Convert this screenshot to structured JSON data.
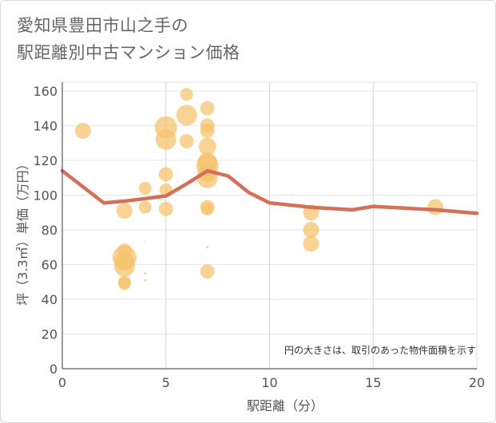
{
  "chart_data": {
    "type": "scatter",
    "title_lines": [
      "愛知県豊田市山之手の",
      "駅距離別中古マンション価格"
    ],
    "xlabel": "駅距離（分）",
    "ylabel": "坪（3.3㎡）単価（万円）",
    "xlim": [
      0,
      20
    ],
    "ylim": [
      0,
      165
    ],
    "x_ticks": [
      0,
      5,
      10,
      15,
      20
    ],
    "y_ticks": [
      0,
      20,
      40,
      60,
      80,
      100,
      120,
      140,
      160
    ],
    "grid": true,
    "note": "円の大きさは、取引のあった物件面積を示す",
    "bubble_color": "#f5c26b",
    "line_color": "#d4705a",
    "points": [
      {
        "x": 1,
        "y": 137,
        "size": 10
      },
      {
        "x": 3,
        "y": 91,
        "size": 10
      },
      {
        "x": 3,
        "y": 68,
        "size": 9
      },
      {
        "x": 3,
        "y": 64,
        "size": 15
      },
      {
        "x": 3,
        "y": 62,
        "size": 12
      },
      {
        "x": 3,
        "y": 59,
        "size": 13
      },
      {
        "x": 3,
        "y": 50,
        "size": 8
      },
      {
        "x": 3,
        "y": 49,
        "size": 8
      },
      {
        "x": 4,
        "y": 104,
        "size": 8
      },
      {
        "x": 4,
        "y": 93,
        "size": 8
      },
      {
        "x": 4,
        "y": 55,
        "size": 1.5
      },
      {
        "x": 4,
        "y": 51,
        "size": 1.5
      },
      {
        "x": 4,
        "y": 73,
        "size": 0.8
      },
      {
        "x": 5,
        "y": 139,
        "size": 14
      },
      {
        "x": 5,
        "y": 132,
        "size": 13
      },
      {
        "x": 5,
        "y": 112,
        "size": 9
      },
      {
        "x": 5,
        "y": 103,
        "size": 8
      },
      {
        "x": 5,
        "y": 92,
        "size": 9
      },
      {
        "x": 6,
        "y": 158,
        "size": 8
      },
      {
        "x": 6,
        "y": 146,
        "size": 13
      },
      {
        "x": 6,
        "y": 131,
        "size": 9
      },
      {
        "x": 7,
        "y": 150,
        "size": 9
      },
      {
        "x": 7,
        "y": 140,
        "size": 9
      },
      {
        "x": 7,
        "y": 137,
        "size": 9
      },
      {
        "x": 7,
        "y": 128,
        "size": 11
      },
      {
        "x": 7,
        "y": 119,
        "size": 12
      },
      {
        "x": 7,
        "y": 117,
        "size": 14
      },
      {
        "x": 7,
        "y": 113,
        "size": 12
      },
      {
        "x": 7,
        "y": 110,
        "size": 13
      },
      {
        "x": 7,
        "y": 93,
        "size": 9
      },
      {
        "x": 7,
        "y": 92,
        "size": 8
      },
      {
        "x": 7,
        "y": 70,
        "size": 1.5
      },
      {
        "x": 7,
        "y": 56,
        "size": 9
      },
      {
        "x": 12,
        "y": 90,
        "size": 10
      },
      {
        "x": 12,
        "y": 80,
        "size": 10
      },
      {
        "x": 12,
        "y": 72,
        "size": 10
      },
      {
        "x": 18,
        "y": 93,
        "size": 10
      }
    ],
    "series": [
      {
        "values": [
          {
            "x": 0,
            "y": 114
          },
          {
            "x": 2,
            "y": 95.5
          },
          {
            "x": 3,
            "y": 96.5
          },
          {
            "x": 4,
            "y": 98
          },
          {
            "x": 5,
            "y": 99.5
          },
          {
            "x": 6,
            "y": 106.5
          },
          {
            "x": 7,
            "y": 114
          },
          {
            "x": 8,
            "y": 111
          },
          {
            "x": 9,
            "y": 101.5
          },
          {
            "x": 10,
            "y": 95.5
          },
          {
            "x": 12,
            "y": 93
          },
          {
            "x": 14,
            "y": 91.5
          },
          {
            "x": 15,
            "y": 93.5
          },
          {
            "x": 18,
            "y": 91.5
          },
          {
            "x": 20,
            "y": 89.5
          }
        ]
      }
    ]
  }
}
